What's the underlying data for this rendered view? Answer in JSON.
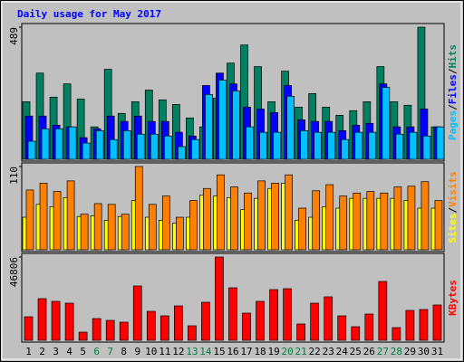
{
  "chart_data": {
    "type": "bar",
    "title": "Daily usage for May 2017",
    "legend_separator": "/",
    "categories": [
      "1",
      "2",
      "3",
      "4",
      "5",
      "6",
      "7",
      "8",
      "9",
      "10",
      "11",
      "12",
      "13",
      "14",
      "15",
      "16",
      "17",
      "18",
      "19",
      "20",
      "21",
      "22",
      "23",
      "24",
      "25",
      "26",
      "27",
      "28",
      "29",
      "30",
      "31"
    ],
    "category_colors": [
      "#000000",
      "#000000",
      "#000000",
      "#000000",
      "#000000",
      "#008040",
      "#008040",
      "#000000",
      "#000000",
      "#000000",
      "#000000",
      "#000000",
      "#008040",
      "#008040",
      "#000000",
      "#000000",
      "#000000",
      "#000000",
      "#000000",
      "#008040",
      "#008040",
      "#000000",
      "#000000",
      "#000000",
      "#000000",
      "#000000",
      "#008040",
      "#008040",
      "#000000",
      "#000000",
      "#000000"
    ],
    "panels": [
      {
        "ylim": [
          0,
          489
        ],
        "yticks": [
          489
        ],
        "series": [
          {
            "name": "Pages",
            "color": "#00c0ff",
            "values": [
              67,
              113,
              113,
              120,
              60,
              106,
              73,
              106,
              93,
              93,
              86,
              47,
              73,
              240,
              293,
              253,
              120,
              100,
              100,
              233,
              106,
              100,
              100,
              73,
              100,
              100,
              266,
              93,
              100,
              86,
              120
            ]
          },
          {
            "name": "Files",
            "color": "#0000ff",
            "values": [
              160,
              160,
              126,
              120,
              80,
              113,
              160,
              140,
              160,
              140,
              140,
              100,
              86,
              273,
              319,
              279,
              193,
              186,
              173,
              273,
              146,
              140,
              140,
              106,
              126,
              133,
              279,
              120,
              120,
              186,
              120
            ]
          },
          {
            "name": "Hits",
            "color": "#008060",
            "values": [
              213,
              319,
              230,
              279,
              223,
              120,
              333,
              170,
              213,
              256,
              220,
              203,
              153,
              120,
              226,
              356,
              423,
              343,
              213,
              326,
              193,
              243,
              193,
              163,
              180,
              213,
              343,
              213,
              200,
              489,
              120
            ]
          }
        ]
      },
      {
        "ylim": [
          0,
          110
        ],
        "yticks": [
          110
        ],
        "series": [
          {
            "name": "Sites",
            "color": "#ffff00",
            "values": [
              43,
              60,
              57,
              69,
              44,
              45,
              39,
              44,
              65,
              43,
              39,
              35,
              43,
              72,
              71,
              69,
              53,
              68,
              81,
              88,
              39,
              43,
              57,
              55,
              68,
              68,
              68,
              68,
              65,
              55,
              55
            ]
          },
          {
            "name": "Visits",
            "color": "#ff8000",
            "values": [
              79,
              88,
              77,
              91,
              47,
              61,
              60,
              47,
              110,
              60,
              71,
              43,
              65,
              81,
              99,
              83,
              75,
              91,
              88,
              99,
              55,
              78,
              86,
              71,
              75,
              77,
              75,
              83,
              84,
              90,
              65
            ]
          }
        ]
      },
      {
        "ylim": [
          0,
          46806
        ],
        "yticks": [
          46806
        ],
        "series": [
          {
            "name": "KBytes",
            "color": "#ff0000",
            "values": [
              13229,
              23405,
              21878,
              20861,
              4579,
              12211,
              11194,
              10176,
              30528,
              16282,
              13738,
              19334,
              8141,
              21370,
              46806,
              29510,
              15264,
              21878,
              28493,
              29002,
              9158,
              20861,
              24422,
              13738,
              7632,
              14755,
              33072,
              7123,
              16790,
              17299,
              19843
            ]
          }
        ]
      }
    ]
  }
}
